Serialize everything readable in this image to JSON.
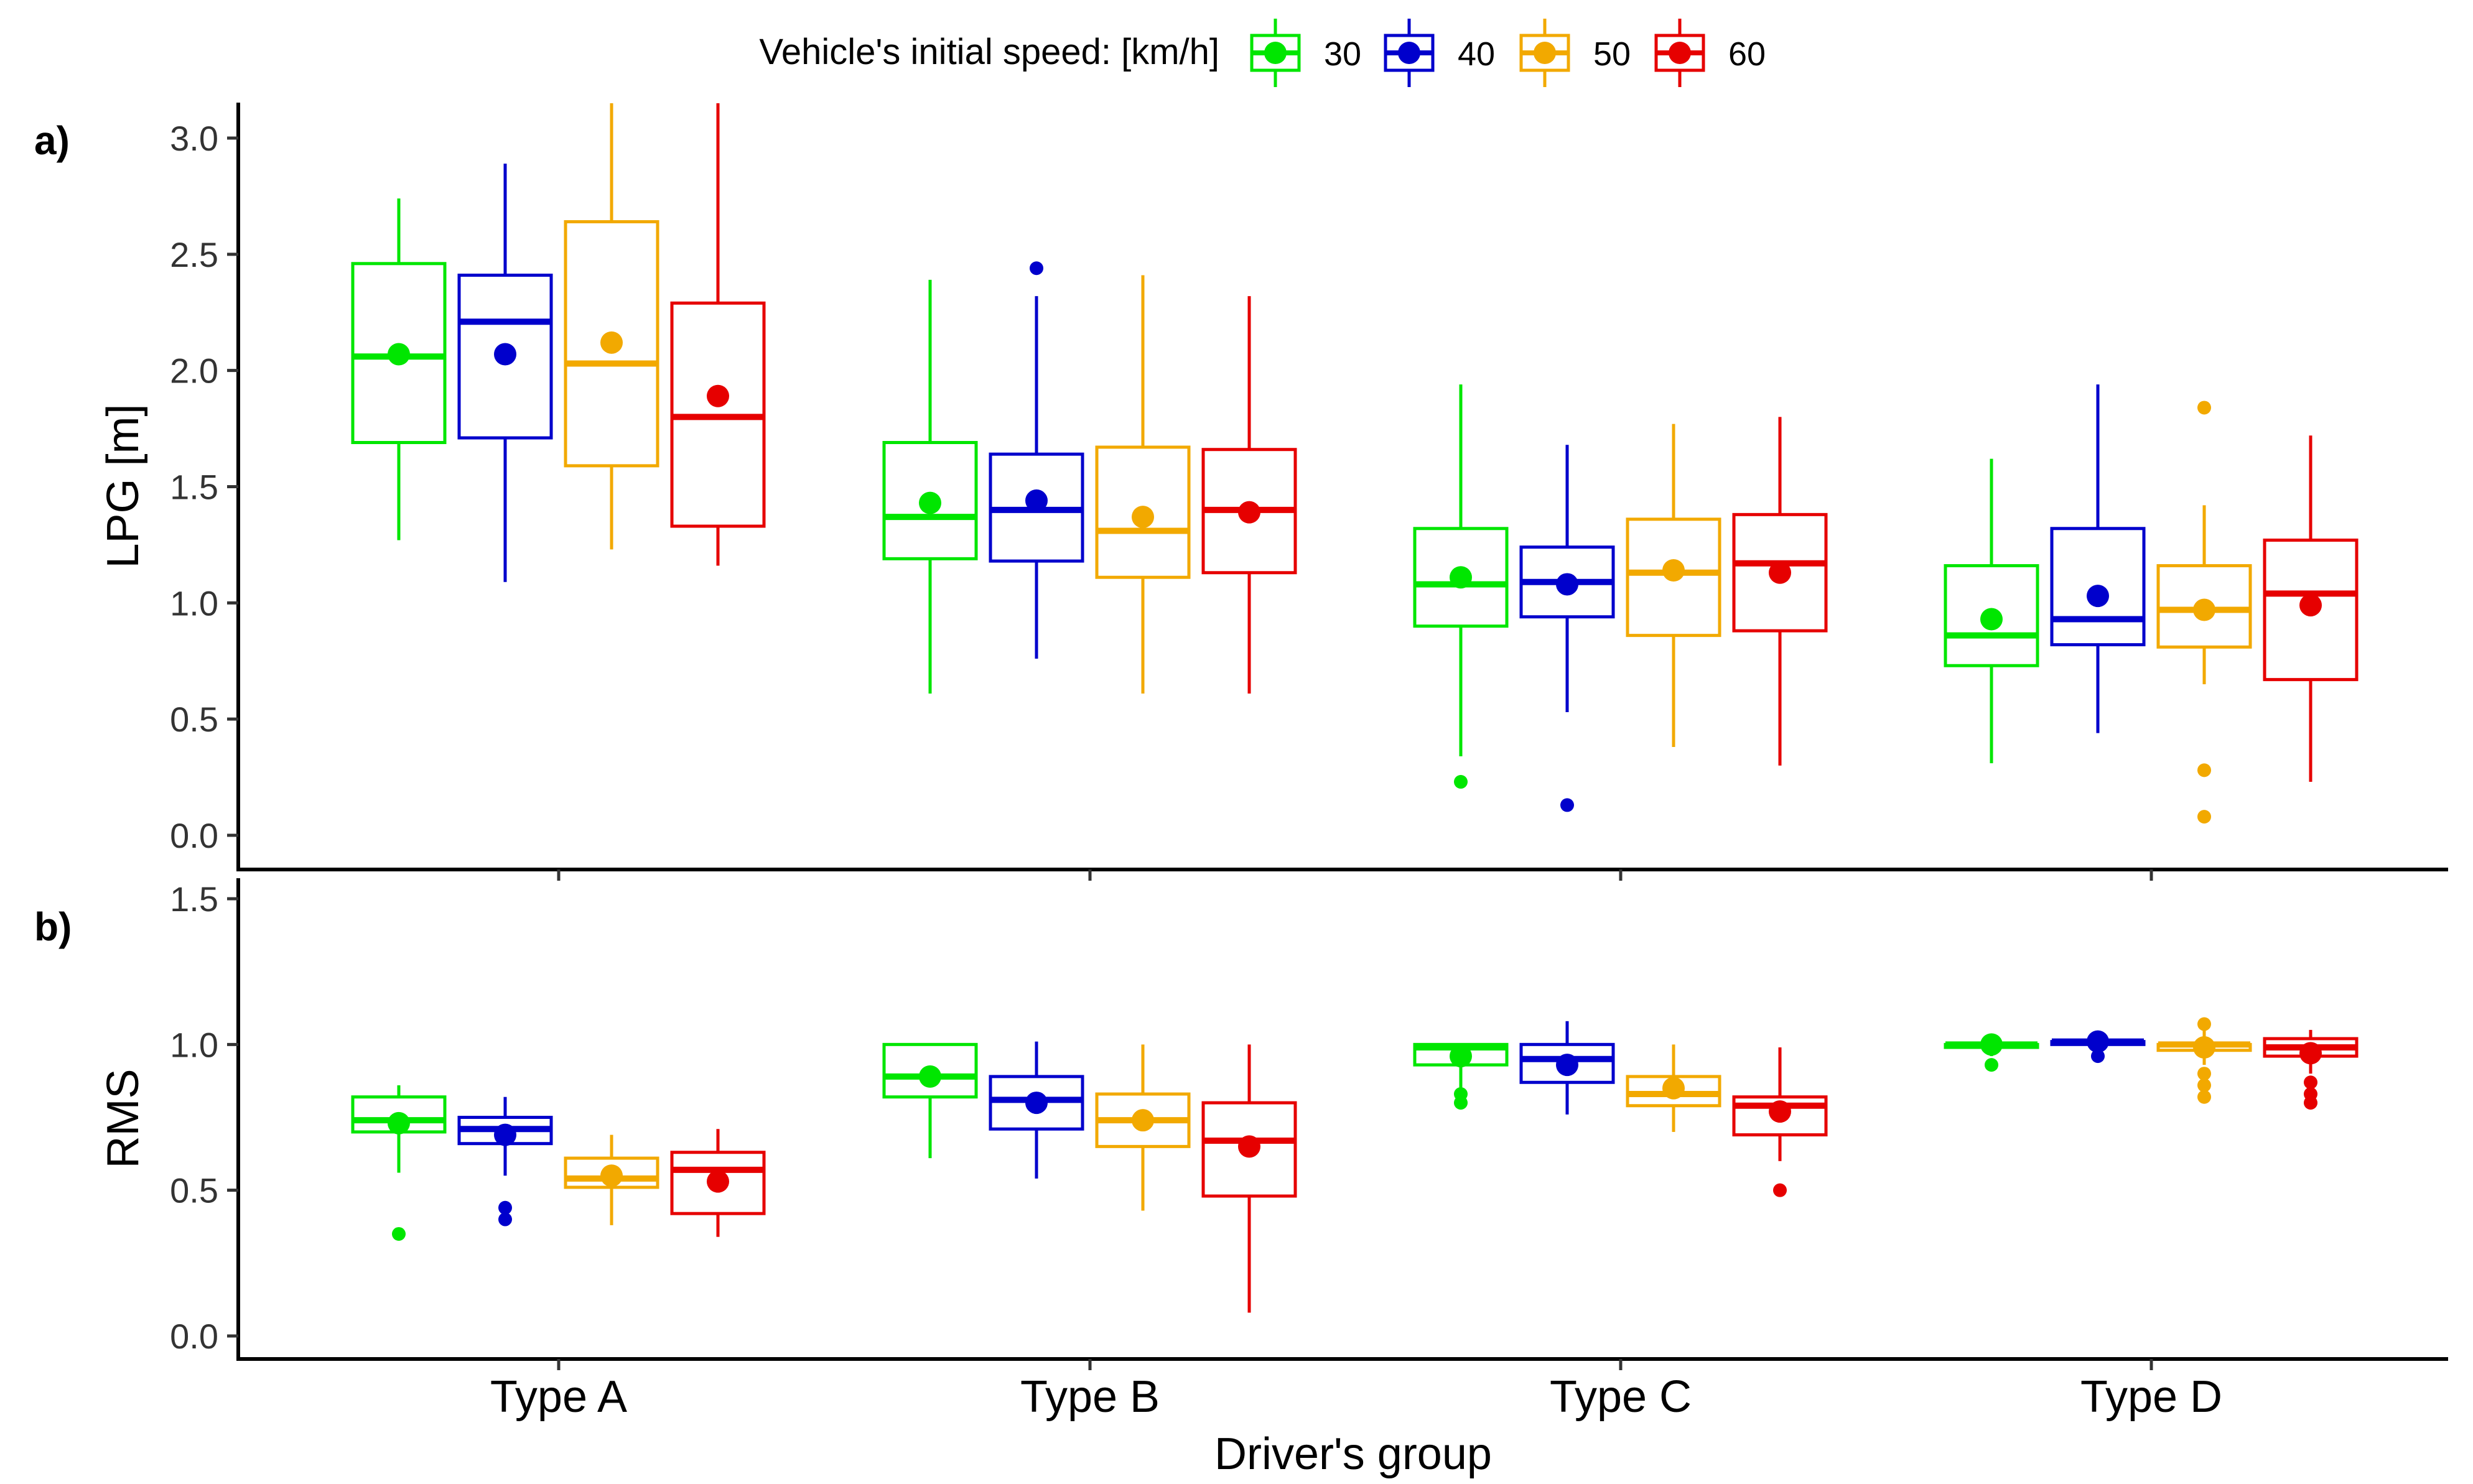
{
  "chart_data": [
    {
      "type": "box",
      "panel_tag": "a)",
      "ylabel": "LPG [m]",
      "xlabel": "Driver's group",
      "ylim": [
        -0.15,
        3.15
      ],
      "yticks": [
        "0.0",
        "0.5",
        "1.0",
        "1.5",
        "2.0",
        "2.5",
        "3.0"
      ],
      "categories": [
        "Type A",
        "Type B",
        "Type C",
        "Type D"
      ],
      "series": [
        {
          "name": "30",
          "color": "#00e600",
          "boxes": [
            {
              "low": 1.27,
              "q1": 1.69,
              "median": 2.06,
              "q3": 2.46,
              "high": 2.74,
              "mean": 2.07,
              "outliers": []
            },
            {
              "low": 0.61,
              "q1": 1.19,
              "median": 1.37,
              "q3": 1.69,
              "high": 2.39,
              "mean": 1.43,
              "outliers": []
            },
            {
              "low": 0.34,
              "q1": 0.9,
              "median": 1.08,
              "q3": 1.32,
              "high": 1.94,
              "mean": 1.11,
              "outliers": [
                0.23
              ]
            },
            {
              "low": 0.31,
              "q1": 0.73,
              "median": 0.86,
              "q3": 1.16,
              "high": 1.62,
              "mean": 0.93,
              "outliers": []
            }
          ]
        },
        {
          "name": "40",
          "color": "#0000cc",
          "boxes": [
            {
              "low": 1.09,
              "q1": 1.71,
              "median": 2.21,
              "q3": 2.41,
              "high": 2.89,
              "mean": 2.07,
              "outliers": []
            },
            {
              "low": 0.76,
              "q1": 1.18,
              "median": 1.4,
              "q3": 1.64,
              "high": 2.32,
              "mean": 1.44,
              "outliers": [
                2.44
              ]
            },
            {
              "low": 0.53,
              "q1": 0.94,
              "median": 1.09,
              "q3": 1.24,
              "high": 1.68,
              "mean": 1.08,
              "outliers": [
                0.13
              ]
            },
            {
              "low": 0.44,
              "q1": 0.82,
              "median": 0.93,
              "q3": 1.32,
              "high": 1.94,
              "mean": 1.03,
              "outliers": []
            }
          ]
        },
        {
          "name": "50",
          "color": "#f2a900",
          "boxes": [
            {
              "low": 1.23,
              "q1": 1.59,
              "median": 2.03,
              "q3": 2.64,
              "high": 3.15,
              "mean": 2.12,
              "outliers": []
            },
            {
              "low": 0.61,
              "q1": 1.11,
              "median": 1.31,
              "q3": 1.67,
              "high": 2.41,
              "mean": 1.37,
              "outliers": []
            },
            {
              "low": 0.38,
              "q1": 0.86,
              "median": 1.13,
              "q3": 1.36,
              "high": 1.77,
              "mean": 1.14,
              "outliers": []
            },
            {
              "low": 0.65,
              "q1": 0.81,
              "median": 0.97,
              "q3": 1.16,
              "high": 1.42,
              "mean": 0.97,
              "outliers": [
                1.84,
                0.28,
                0.08
              ]
            }
          ]
        },
        {
          "name": "60",
          "color": "#e60000",
          "boxes": [
            {
              "low": 1.16,
              "q1": 1.33,
              "median": 1.8,
              "q3": 2.29,
              "high": 3.15,
              "mean": 1.89,
              "outliers": []
            },
            {
              "low": 0.61,
              "q1": 1.13,
              "median": 1.4,
              "q3": 1.66,
              "high": 2.32,
              "mean": 1.39,
              "outliers": []
            },
            {
              "low": 0.3,
              "q1": 0.88,
              "median": 1.17,
              "q3": 1.38,
              "high": 1.8,
              "mean": 1.13,
              "outliers": []
            },
            {
              "low": 0.23,
              "q1": 0.67,
              "median": 1.04,
              "q3": 1.27,
              "high": 1.72,
              "mean": 0.99,
              "outliers": []
            }
          ]
        }
      ]
    },
    {
      "type": "box",
      "panel_tag": "b)",
      "ylabel": "RMS",
      "xlabel": "Driver's group",
      "ylim": [
        -0.07,
        1.57
      ],
      "yticks": [
        "0.0",
        "0.5",
        "1.0",
        "1.5"
      ],
      "categories": [
        "Type A",
        "Type B",
        "Type C",
        "Type D"
      ],
      "series": [
        {
          "name": "30",
          "color": "#00e600",
          "boxes": [
            {
              "low": 0.56,
              "q1": 0.7,
              "median": 0.74,
              "q3": 0.82,
              "high": 0.86,
              "mean": 0.73,
              "outliers": [
                0.35
              ]
            },
            {
              "low": 0.61,
              "q1": 0.82,
              "median": 0.89,
              "q3": 1.0,
              "high": 1.0,
              "mean": 0.89,
              "outliers": []
            },
            {
              "low": 0.85,
              "q1": 0.93,
              "median": 0.99,
              "q3": 1.0,
              "high": 1.0,
              "mean": 0.96,
              "outliers": [
                0.8,
                0.83
              ]
            },
            {
              "low": 0.96,
              "q1": 0.99,
              "median": 1.0,
              "q3": 1.0,
              "high": 1.0,
              "mean": 1.0,
              "outliers": [
                0.93
              ]
            }
          ]
        },
        {
          "name": "40",
          "color": "#0000cc",
          "boxes": [
            {
              "low": 0.55,
              "q1": 0.66,
              "median": 0.71,
              "q3": 0.75,
              "high": 0.82,
              "mean": 0.69,
              "outliers": [
                0.44,
                0.4
              ]
            },
            {
              "low": 0.54,
              "q1": 0.71,
              "median": 0.81,
              "q3": 0.89,
              "high": 1.01,
              "mean": 0.8,
              "outliers": []
            },
            {
              "low": 0.76,
              "q1": 0.87,
              "median": 0.95,
              "q3": 1.0,
              "high": 1.08,
              "mean": 0.93,
              "outliers": []
            },
            {
              "low": 0.98,
              "q1": 1.0,
              "median": 1.01,
              "q3": 1.01,
              "high": 1.03,
              "mean": 1.01,
              "outliers": [
                0.96
              ]
            }
          ]
        },
        {
          "name": "50",
          "color": "#f2a900",
          "boxes": [
            {
              "low": 0.38,
              "q1": 0.51,
              "median": 0.54,
              "q3": 0.61,
              "high": 0.69,
              "mean": 0.55,
              "outliers": []
            },
            {
              "low": 0.43,
              "q1": 0.65,
              "median": 0.74,
              "q3": 0.83,
              "high": 1.0,
              "mean": 0.74,
              "outliers": []
            },
            {
              "low": 0.7,
              "q1": 0.79,
              "median": 0.83,
              "q3": 0.89,
              "high": 1.0,
              "mean": 0.85,
              "outliers": []
            },
            {
              "low": 0.93,
              "q1": 0.98,
              "median": 1.0,
              "q3": 1.0,
              "high": 1.06,
              "mean": 0.99,
              "outliers": [
                1.07,
                0.9,
                0.86,
                0.82
              ]
            }
          ]
        },
        {
          "name": "60",
          "color": "#e60000",
          "boxes": [
            {
              "low": 0.34,
              "q1": 0.42,
              "median": 0.57,
              "q3": 0.63,
              "high": 0.71,
              "mean": 0.53,
              "outliers": []
            },
            {
              "low": 0.08,
              "q1": 0.48,
              "median": 0.67,
              "q3": 0.8,
              "high": 1.0,
              "mean": 0.65,
              "outliers": []
            },
            {
              "low": 0.6,
              "q1": 0.69,
              "median": 0.79,
              "q3": 0.82,
              "high": 0.99,
              "mean": 0.77,
              "outliers": [
                0.5
              ]
            },
            {
              "low": 0.9,
              "q1": 0.96,
              "median": 0.99,
              "q3": 1.02,
              "high": 1.05,
              "mean": 0.97,
              "outliers": [
                0.87,
                0.83,
                0.8
              ]
            }
          ]
        }
      ]
    }
  ],
  "legend": {
    "title": "Vehicle's initial speed: [km/h]",
    "items": [
      {
        "label": "30",
        "color": "#00e600"
      },
      {
        "label": "40",
        "color": "#0000cc"
      },
      {
        "label": "50",
        "color": "#f2a900"
      },
      {
        "label": "60",
        "color": "#e60000"
      }
    ]
  }
}
